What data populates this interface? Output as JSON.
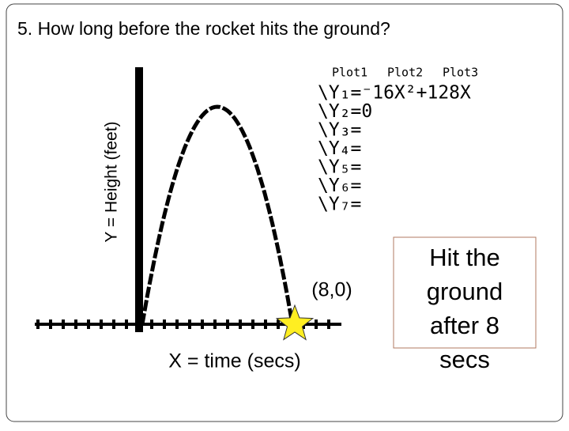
{
  "title": "5.  How long before the rocket hits the ground?",
  "y_axis_label": "Y = Height (feet)",
  "x_axis_label": "X = time (secs)",
  "point_label": "(8,0)",
  "calculator": {
    "plots": [
      "Plot1",
      "Plot2",
      "Plot3"
    ],
    "rows": [
      "\\Y₁=⁻16X²+128X",
      "\\Y₂=0",
      "\\Y₃=",
      "\\Y₄=",
      "\\Y₅=",
      "\\Y₆=",
      "\\Y₇="
    ]
  },
  "callout": [
    "Hit the",
    "ground",
    "after 8",
    "secs"
  ]
}
